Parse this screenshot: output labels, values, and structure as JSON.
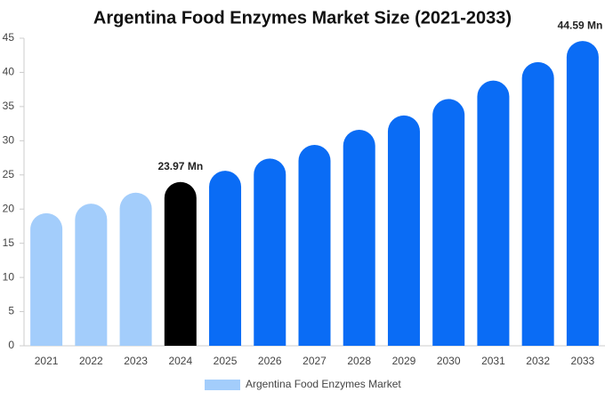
{
  "chart_data": {
    "type": "bar",
    "title": "Argentina Food Enzymes Market Size (2021-2033)",
    "categories": [
      "2021",
      "2022",
      "2023",
      "2024",
      "2025",
      "2026",
      "2027",
      "2028",
      "2029",
      "2030",
      "2031",
      "2032",
      "2033"
    ],
    "series": [
      {
        "name": "Argentina Food Enzymes Market",
        "color": "#a3cdfb",
        "colors": [
          "#a3cdfb",
          "#a3cdfb",
          "#a3cdfb",
          "#000000",
          "#0a6cf5",
          "#0a6cf5",
          "#0a6cf5",
          "#0a6cf5",
          "#0a6cf5",
          "#0a6cf5",
          "#0a6cf5",
          "#0a6cf5",
          "#0a6cf5"
        ],
        "values": [
          19.4,
          20.8,
          22.4,
          23.97,
          25.6,
          27.4,
          29.4,
          31.6,
          33.7,
          36.1,
          38.8,
          41.5,
          44.59
        ],
        "value_labels": [
          null,
          null,
          null,
          "23.97 Mn",
          null,
          null,
          null,
          null,
          null,
          null,
          null,
          null,
          "44.59 Mn"
        ]
      }
    ],
    "ylim": [
      0,
      45
    ],
    "yticks": [
      0,
      5,
      10,
      15,
      20,
      25,
      30,
      35,
      40,
      45
    ],
    "grid": false,
    "legend": "bottom"
  }
}
